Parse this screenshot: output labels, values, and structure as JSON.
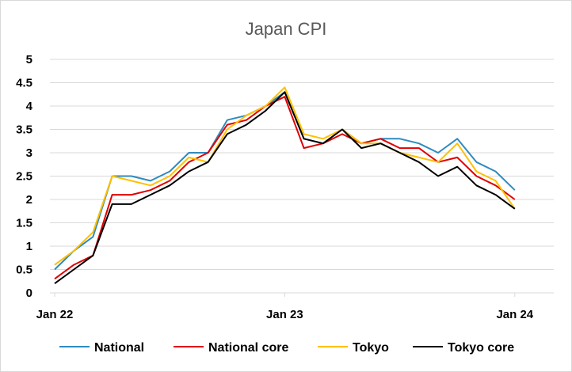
{
  "chart_data": {
    "type": "line",
    "title": "Japan CPI",
    "xlabel": "",
    "ylabel": "",
    "ylim": [
      0,
      5
    ],
    "yticks": [
      "0",
      "0.5",
      "1",
      "1.5",
      "2",
      "2.5",
      "3",
      "3.5",
      "4",
      "4.5",
      "5"
    ],
    "xtick_labels": [
      "Jan 22",
      "Jan 23",
      "Jan 24"
    ],
    "x": [
      "2022-01",
      "2022-02",
      "2022-03",
      "2022-04",
      "2022-05",
      "2022-06",
      "2022-07",
      "2022-08",
      "2022-09",
      "2022-10",
      "2022-11",
      "2022-12",
      "2023-01",
      "2023-02",
      "2023-03",
      "2023-04",
      "2023-05",
      "2023-06",
      "2023-07",
      "2023-08",
      "2023-09",
      "2023-10",
      "2023-11",
      "2023-12",
      "2024-01"
    ],
    "grid": true,
    "legend_position": "bottom",
    "series": [
      {
        "name": "National",
        "color": "#2e8bbf",
        "values": [
          0.5,
          0.9,
          1.2,
          2.5,
          2.5,
          2.4,
          2.6,
          3.0,
          3.0,
          3.7,
          3.8,
          4.0,
          4.3,
          3.3,
          3.2,
          3.5,
          3.2,
          3.3,
          3.3,
          3.2,
          3.0,
          3.3,
          2.8,
          2.6,
          2.2
        ]
      },
      {
        "name": "National core",
        "color": "#e00000",
        "values": [
          0.3,
          0.6,
          0.8,
          2.1,
          2.1,
          2.2,
          2.4,
          2.8,
          3.0,
          3.6,
          3.7,
          4.0,
          4.2,
          3.1,
          3.2,
          3.4,
          3.2,
          3.3,
          3.1,
          3.1,
          2.8,
          2.9,
          2.5,
          2.3,
          2.0
        ]
      },
      {
        "name": "Tokyo",
        "color": "#ffc000",
        "values": [
          0.6,
          0.9,
          1.3,
          2.5,
          2.4,
          2.3,
          2.5,
          2.9,
          2.8,
          3.5,
          3.8,
          4.0,
          4.4,
          3.4,
          3.3,
          3.5,
          3.2,
          3.2,
          3.0,
          2.9,
          2.8,
          3.2,
          2.6,
          2.4,
          1.8
        ]
      },
      {
        "name": "Tokyo core",
        "color": "#000000",
        "values": [
          0.2,
          0.5,
          0.8,
          1.9,
          1.9,
          2.1,
          2.3,
          2.6,
          2.8,
          3.4,
          3.6,
          3.9,
          4.3,
          3.3,
          3.2,
          3.5,
          3.1,
          3.2,
          3.0,
          2.8,
          2.5,
          2.7,
          2.3,
          2.1,
          1.8
        ]
      }
    ]
  }
}
